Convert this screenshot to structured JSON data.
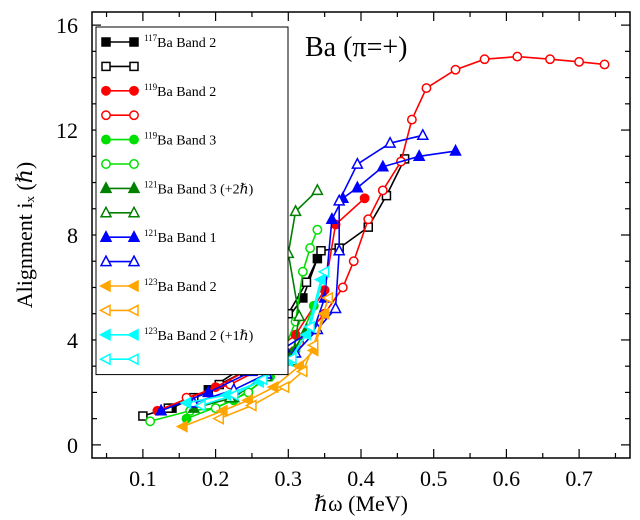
{
  "chart_data": {
    "type": "line",
    "title": "",
    "annotation": "Ba (π=+)",
    "xlabel": "ℏω (MeV)",
    "ylabel": "Alignment  iₓ (ℏ)",
    "xlim": [
      0.03,
      0.77
    ],
    "ylim": [
      -0.5,
      16.5
    ],
    "xticks": [
      0.1,
      0.2,
      0.3,
      0.4,
      0.5,
      0.6,
      0.7
    ],
    "xtick_labels": [
      "0.1",
      "0.2",
      "0.3",
      "0.4",
      "0.5",
      "0.6",
      "0.7"
    ],
    "yticks": [
      0,
      4,
      8,
      12,
      16
    ],
    "ytick_labels": [
      "0",
      "4",
      "8",
      "12",
      "16"
    ],
    "grid": false,
    "legend_position": "top-left",
    "series": [
      {
        "legend_sup": "117",
        "legend_rest": "Ba Band 2",
        "color": "#000000",
        "marker": "square",
        "filled": true,
        "x": [
          0.14,
          0.19,
          0.235,
          0.285,
          0.32,
          0.34
        ],
        "y": [
          1.4,
          2.1,
          2.9,
          4.3,
          5.6,
          7.1
        ]
      },
      {
        "legend_sup": "",
        "legend_rest": "",
        "color": "#000000",
        "marker": "square",
        "filled": false,
        "x": [
          0.1,
          0.135,
          0.17,
          0.205,
          0.24,
          0.27,
          0.3,
          0.325,
          0.345,
          0.37,
          0.41,
          0.435,
          0.46
        ],
        "y": [
          1.1,
          1.4,
          1.8,
          2.3,
          2.8,
          3.9,
          5.0,
          6.2,
          7.4,
          7.5,
          8.3,
          9.5,
          10.9
        ]
      },
      {
        "legend_sup": "119",
        "legend_rest": "Ba Band 2",
        "color": "#ff0000",
        "marker": "circle",
        "filled": true,
        "x": [
          0.12,
          0.2,
          0.255,
          0.31,
          0.35,
          0.365,
          0.405
        ],
        "y": [
          1.3,
          2.2,
          3.0,
          4.2,
          5.9,
          8.4,
          9.4
        ]
      },
      {
        "legend_sup": "",
        "legend_rest": "",
        "color": "#ff0000",
        "marker": "circle",
        "filled": false,
        "x": [
          0.16,
          0.22,
          0.27,
          0.315,
          0.35,
          0.375,
          0.39,
          0.41,
          0.43,
          0.455,
          0.47,
          0.49,
          0.53,
          0.57,
          0.615,
          0.66,
          0.7,
          0.735
        ],
        "y": [
          1.8,
          2.3,
          3.0,
          3.9,
          5.0,
          6.0,
          7.0,
          8.6,
          9.7,
          10.8,
          12.4,
          13.6,
          14.3,
          14.7,
          14.8,
          14.7,
          14.6,
          14.5
        ]
      },
      {
        "legend_sup": "119",
        "legend_rest": "Ba Band 3",
        "color": "#00e000",
        "marker": "circle",
        "filled": true,
        "x": [
          0.16,
          0.225,
          0.275,
          0.31,
          0.335
        ],
        "y": [
          1.0,
          1.7,
          2.6,
          3.6,
          5.3
        ]
      },
      {
        "legend_sup": "",
        "legend_rest": "",
        "color": "#00e000",
        "marker": "circle",
        "filled": false,
        "x": [
          0.11,
          0.165,
          0.2,
          0.245,
          0.285,
          0.31,
          0.32,
          0.33,
          0.34
        ],
        "y": [
          0.9,
          1.3,
          1.4,
          2.0,
          3.0,
          4.7,
          6.6,
          7.5,
          8.2
        ]
      },
      {
        "legend_sup": "121",
        "legend_rest": "Ba Band 3 (+2ℏ)",
        "color": "#008000",
        "marker": "triangle",
        "filled": true,
        "x": [
          0.17,
          0.225,
          0.27,
          0.305,
          0.325
        ],
        "y": [
          1.4,
          1.8,
          2.7,
          3.5,
          4.4
        ]
      },
      {
        "legend_sup": "",
        "legend_rest": "",
        "color": "#008000",
        "marker": "triangle",
        "filled": false,
        "x": [
          0.22,
          0.27,
          0.305,
          0.315,
          0.3,
          0.31,
          0.34
        ],
        "y": [
          1.8,
          2.6,
          3.2,
          4.9,
          7.3,
          8.9,
          9.7
        ]
      },
      {
        "legend_sup": "121",
        "legend_rest": "Ba Band 1",
        "color": "#0000ff",
        "marker": "triangle",
        "filled": true,
        "x": [
          0.125,
          0.19,
          0.25,
          0.295,
          0.335,
          0.35,
          0.36,
          0.375,
          0.395,
          0.43,
          0.48,
          0.53
        ],
        "y": [
          1.3,
          2.0,
          2.8,
          3.7,
          4.4,
          5.6,
          8.6,
          9.4,
          9.8,
          10.6,
          11.0,
          11.2
        ]
      },
      {
        "legend_sup": "",
        "legend_rest": "",
        "color": "#0000ff",
        "marker": "triangle",
        "filled": false,
        "x": [
          0.17,
          0.225,
          0.27,
          0.31,
          0.34,
          0.365,
          0.37,
          0.37,
          0.395,
          0.44,
          0.485
        ],
        "y": [
          1.6,
          2.1,
          2.7,
          3.5,
          4.4,
          5.2,
          7.4,
          9.3,
          10.7,
          11.5,
          11.8
        ]
      },
      {
        "legend_sup": "123",
        "legend_rest": "Ba Band 2",
        "color": "#ffa500",
        "marker": "triangle-left",
        "filled": true,
        "x": [
          0.155,
          0.21,
          0.245,
          0.28,
          0.315,
          0.335,
          0.35
        ],
        "y": [
          0.7,
          1.3,
          1.7,
          2.2,
          3.0,
          3.6,
          5.0
        ]
      },
      {
        "legend_sup": "",
        "legend_rest": "",
        "color": "#ffa500",
        "marker": "triangle-left",
        "filled": false,
        "x": [
          0.205,
          0.25,
          0.295,
          0.32,
          0.335,
          0.355
        ],
        "y": [
          1.0,
          1.5,
          2.2,
          2.8,
          3.8,
          5.6
        ]
      },
      {
        "legend_sup": "123",
        "legend_rest": "Ba Band 2 (+1ℏ)",
        "color": "#00ffff",
        "marker": "triangle-left",
        "filled": true,
        "x": [
          0.16,
          0.215,
          0.26,
          0.3,
          0.325,
          0.345
        ],
        "y": [
          1.6,
          1.9,
          2.4,
          3.2,
          4.2,
          6.3
        ]
      },
      {
        "legend_sup": "",
        "legend_rest": "",
        "color": "#00ffff",
        "marker": "triangle-left",
        "filled": false,
        "x": [
          0.18,
          0.225,
          0.265,
          0.305,
          0.33,
          0.35
        ],
        "y": [
          1.5,
          1.9,
          2.5,
          3.3,
          4.5,
          6.6
        ]
      }
    ]
  }
}
